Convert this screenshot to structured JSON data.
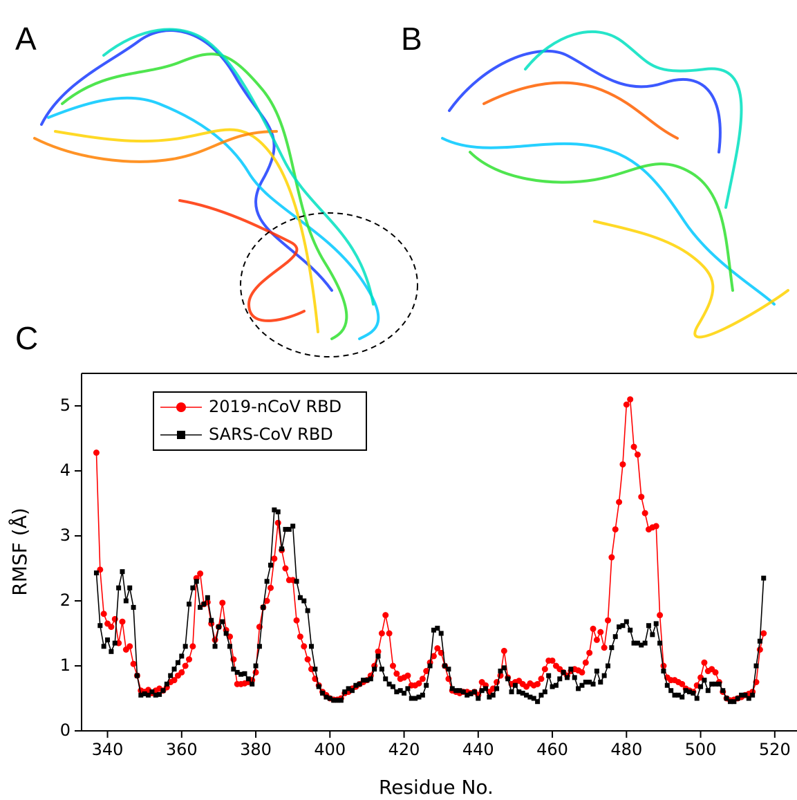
{
  "panel_labels": [
    "A",
    "B",
    "C"
  ],
  "chart_data": {
    "type": "line",
    "xlabel": "Residue No.",
    "ylabel": "RMSF (Å)",
    "x": [
      337,
      338,
      339,
      340,
      341,
      342,
      343,
      344,
      345,
      346,
      347,
      348,
      349,
      350,
      351,
      352,
      353,
      354,
      355,
      356,
      357,
      358,
      359,
      360,
      361,
      362,
      363,
      364,
      365,
      366,
      367,
      368,
      369,
      370,
      371,
      372,
      373,
      374,
      375,
      376,
      377,
      378,
      379,
      380,
      381,
      382,
      383,
      384,
      385,
      386,
      387,
      388,
      389,
      390,
      391,
      392,
      393,
      394,
      395,
      396,
      397,
      398,
      399,
      400,
      401,
      402,
      403,
      404,
      405,
      406,
      407,
      408,
      409,
      410,
      411,
      412,
      413,
      414,
      415,
      416,
      417,
      418,
      419,
      420,
      421,
      422,
      423,
      424,
      425,
      426,
      427,
      428,
      429,
      430,
      431,
      432,
      433,
      434,
      435,
      436,
      437,
      438,
      439,
      440,
      441,
      442,
      443,
      444,
      445,
      446,
      447,
      448,
      449,
      450,
      451,
      452,
      453,
      454,
      455,
      456,
      457,
      458,
      459,
      460,
      461,
      462,
      463,
      464,
      465,
      466,
      467,
      468,
      469,
      470,
      471,
      472,
      473,
      474,
      475,
      476,
      477,
      478,
      479,
      480,
      481,
      482,
      483,
      484,
      485,
      486,
      487,
      488,
      489,
      490,
      491,
      492,
      493,
      494,
      495,
      496,
      497,
      498,
      499,
      500,
      501,
      502,
      503,
      504,
      505,
      506,
      507,
      508,
      509,
      510,
      511,
      512,
      513,
      514,
      515,
      516,
      517
    ],
    "series": [
      {
        "name": "2019-nCoV RBD",
        "color": "#ff0000",
        "marker": "circle",
        "values": [
          4.28,
          2.48,
          1.8,
          1.65,
          1.6,
          1.72,
          1.35,
          1.68,
          1.25,
          1.3,
          1.03,
          0.85,
          0.62,
          0.6,
          0.63,
          0.58,
          0.62,
          0.65,
          0.62,
          0.67,
          0.75,
          0.78,
          0.85,
          0.9,
          1.0,
          1.1,
          1.3,
          2.35,
          2.42,
          1.95,
          1.98,
          1.65,
          1.4,
          1.6,
          1.97,
          1.55,
          1.45,
          1.1,
          0.72,
          0.72,
          0.73,
          0.75,
          0.78,
          0.9,
          1.6,
          1.9,
          2.0,
          2.2,
          2.65,
          3.2,
          2.78,
          2.5,
          2.32,
          2.32,
          1.7,
          1.45,
          1.3,
          1.1,
          0.95,
          0.8,
          0.7,
          0.6,
          0.55,
          0.5,
          0.48,
          0.48,
          0.5,
          0.58,
          0.6,
          0.65,
          0.68,
          0.72,
          0.75,
          0.78,
          0.85,
          1.0,
          1.22,
          1.5,
          1.78,
          1.5,
          1.0,
          0.88,
          0.8,
          0.82,
          0.85,
          0.7,
          0.7,
          0.73,
          0.8,
          0.92,
          1.05,
          1.15,
          1.27,
          1.2,
          1.0,
          0.8,
          0.62,
          0.6,
          0.58,
          0.6,
          0.6,
          0.58,
          0.6,
          0.55,
          0.75,
          0.7,
          0.6,
          0.65,
          0.75,
          0.85,
          1.23,
          0.82,
          0.72,
          0.75,
          0.77,
          0.72,
          0.68,
          0.73,
          0.7,
          0.72,
          0.8,
          0.95,
          1.08,
          1.08,
          1.0,
          0.95,
          0.9,
          0.85,
          0.92,
          0.95,
          0.93,
          0.9,
          1.05,
          1.2,
          1.57,
          1.4,
          1.52,
          1.28,
          1.7,
          2.67,
          3.1,
          3.52,
          4.1,
          5.02,
          5.1,
          4.37,
          4.25,
          3.6,
          3.35,
          3.1,
          3.13,
          3.15,
          1.78,
          1.0,
          0.82,
          0.78,
          0.78,
          0.75,
          0.72,
          0.65,
          0.62,
          0.6,
          0.7,
          0.82,
          1.05,
          0.92,
          0.95,
          0.9,
          0.75,
          0.6,
          0.5,
          0.47,
          0.48,
          0.5,
          0.52,
          0.55,
          0.57,
          0.6,
          0.75,
          1.25,
          1.5
        ]
      },
      {
        "name": "SARS-CoV RBD",
        "color": "#000000",
        "marker": "square",
        "values": [
          2.43,
          1.62,
          1.3,
          1.4,
          1.22,
          1.35,
          2.2,
          2.45,
          2.0,
          2.2,
          1.9,
          0.85,
          0.55,
          0.57,
          0.55,
          0.6,
          0.55,
          0.56,
          0.62,
          0.72,
          0.85,
          0.95,
          1.05,
          1.15,
          1.3,
          1.95,
          2.2,
          2.3,
          1.9,
          1.95,
          2.05,
          1.7,
          1.3,
          1.6,
          1.68,
          1.5,
          1.3,
          0.95,
          0.9,
          0.87,
          0.88,
          0.8,
          0.72,
          1.0,
          1.3,
          1.9,
          2.3,
          2.55,
          3.4,
          3.37,
          2.8,
          3.1,
          3.1,
          3.15,
          2.3,
          2.05,
          2.0,
          1.85,
          1.3,
          0.95,
          0.68,
          0.58,
          0.52,
          0.5,
          0.47,
          0.47,
          0.47,
          0.6,
          0.65,
          0.62,
          0.7,
          0.72,
          0.78,
          0.78,
          0.8,
          0.95,
          1.15,
          0.95,
          0.8,
          0.72,
          0.68,
          0.6,
          0.62,
          0.58,
          0.65,
          0.5,
          0.5,
          0.52,
          0.55,
          0.7,
          1.0,
          1.55,
          1.58,
          1.5,
          1.0,
          0.95,
          0.65,
          0.62,
          0.62,
          0.6,
          0.55,
          0.57,
          0.6,
          0.5,
          0.62,
          0.65,
          0.52,
          0.55,
          0.65,
          0.92,
          0.97,
          0.8,
          0.6,
          0.7,
          0.6,
          0.58,
          0.55,
          0.52,
          0.5,
          0.45,
          0.55,
          0.6,
          0.85,
          0.68,
          0.7,
          0.8,
          0.9,
          0.82,
          0.95,
          0.82,
          0.65,
          0.7,
          0.75,
          0.75,
          0.72,
          0.92,
          0.75,
          0.85,
          1.0,
          1.28,
          1.45,
          1.6,
          1.62,
          1.68,
          1.55,
          1.35,
          1.35,
          1.32,
          1.35,
          1.62,
          1.48,
          1.65,
          1.35,
          0.92,
          0.7,
          0.62,
          0.55,
          0.55,
          0.52,
          0.62,
          0.6,
          0.58,
          0.5,
          0.68,
          0.78,
          0.62,
          0.72,
          0.72,
          0.72,
          0.62,
          0.5,
          0.45,
          0.45,
          0.5,
          0.55,
          0.55,
          0.5,
          0.55,
          1.0,
          1.38,
          2.35
        ]
      }
    ],
    "xlim": [
      333,
      526
    ],
    "xticks": [
      340,
      360,
      380,
      400,
      420,
      440,
      460,
      480,
      500,
      520
    ],
    "ylim": [
      0,
      5.5
    ],
    "yticks": [
      0,
      1,
      2,
      3,
      4,
      5
    ],
    "legend": "upper left"
  }
}
